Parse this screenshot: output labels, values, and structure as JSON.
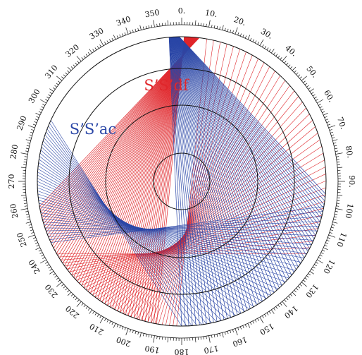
{
  "diagram": {
    "labels": {
      "red_series": "S’S’df",
      "blue_series": "S’S’ac"
    },
    "colors": {
      "red": "#e0262b",
      "blue": "#2a46a6",
      "rings": "#111111"
    },
    "degree_labels": [
      "0.",
      "10.",
      "20.",
      "30.",
      "40.",
      "50.",
      "60.",
      "70.",
      "80.",
      "90.",
      "100",
      "110",
      "120",
      "130",
      "140",
      "150",
      "160",
      "170",
      "180",
      "190",
      "200",
      "210",
      "220",
      "230",
      "240",
      "250",
      "260",
      "270",
      "280",
      "290",
      "300",
      "310",
      "320",
      "330",
      "340",
      "350"
    ]
  }
}
